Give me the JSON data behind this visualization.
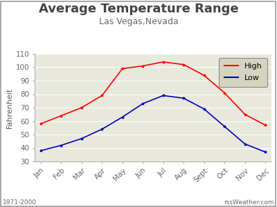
{
  "title": "Average Temperature Range",
  "subtitle": "Las Vegas,Nevada",
  "ylabel": "Fahrenheit",
  "months": [
    "Jan",
    "Feb",
    "Mar",
    "Apr",
    "May",
    "Jun",
    "Jul",
    "Aug",
    "Sept",
    "Oct",
    "Nov",
    "Dec"
  ],
  "high_temps": [
    58,
    64,
    70,
    79,
    99,
    101,
    104,
    102,
    94,
    81,
    65,
    57
  ],
  "low_temps": [
    38,
    42,
    47,
    54,
    63,
    73,
    79,
    77,
    69,
    56,
    43,
    37
  ],
  "high_color": "#ff0000",
  "low_color": "#0000bb",
  "ylim": [
    30,
    110
  ],
  "plot_bg": "#e8e8dc",
  "outer_bg": "#ffffff",
  "footer_left": "1971-2000",
  "footer_right": "rssWeather.com",
  "yticks": [
    30,
    40,
    50,
    60,
    70,
    80,
    90,
    100,
    110
  ],
  "legend_bg": "#d4d4c0",
  "title_fontsize": 13,
  "subtitle_fontsize": 9,
  "axis_fontsize": 8,
  "tick_fontsize": 7.5,
  "footer_fontsize": 6.5
}
